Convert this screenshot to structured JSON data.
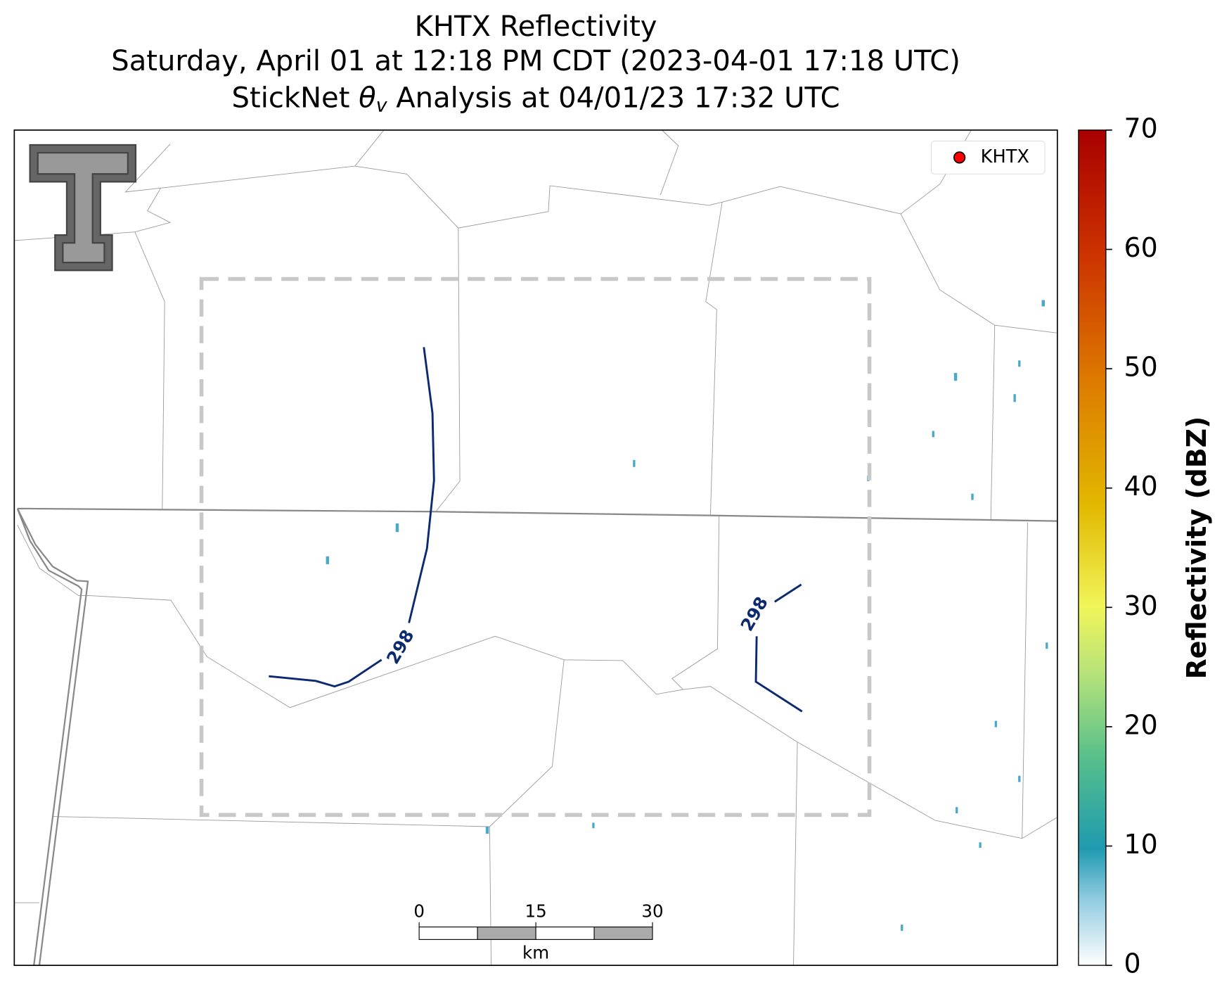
{
  "title": {
    "line1": "KHTX Reflectivity",
    "line2": "Saturday, April 01 at 12:18 PM CDT (2023-04-01 17:18 UTC)",
    "line3": {
      "before": "StickNet ",
      "symbol": "θ",
      "subscript": "v",
      "after": " Analysis at 04/01/23 17:32 UTC"
    }
  },
  "legend": {
    "label": "KHTX",
    "color": "#ff0000"
  },
  "contour_level": 298,
  "colorbar": {
    "label": "Reflectivity (dBZ)",
    "lim": [
      0,
      70
    ],
    "ticks": [
      0,
      10,
      20,
      30,
      40,
      50,
      60,
      70
    ]
  },
  "scale_bar": {
    "lim": [
      0,
      30
    ],
    "ticks": [
      0,
      15,
      30
    ],
    "unit": "km"
  }
}
